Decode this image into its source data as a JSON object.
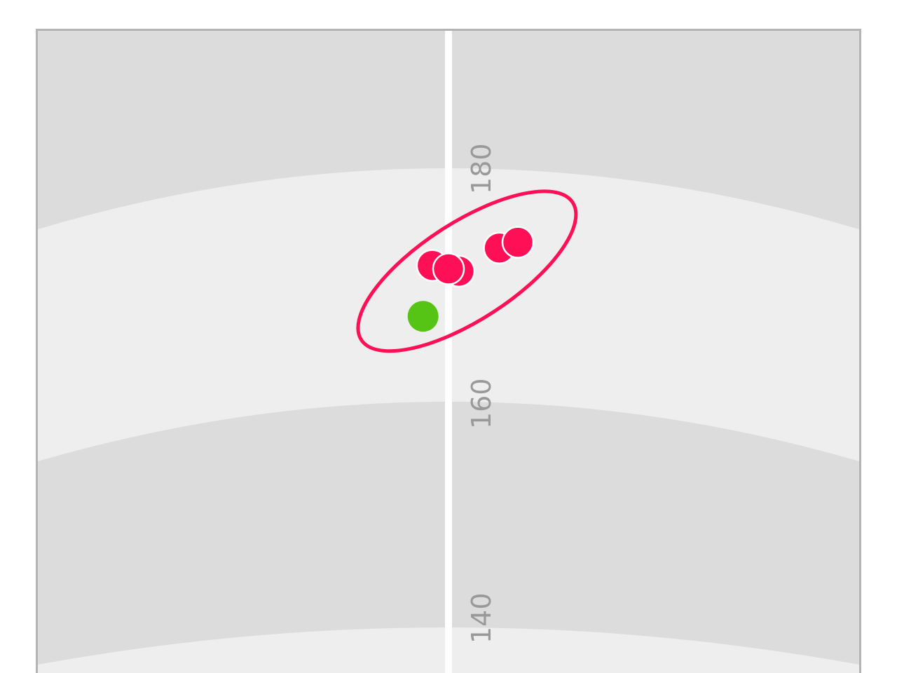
{
  "chart_data": {
    "type": "scatter",
    "title": "",
    "xlabel": "",
    "ylabel": "",
    "ylim": [
      135,
      191
    ],
    "xlim": [
      -35.5,
      35.5
    ],
    "grid": false,
    "distance_arcs": [
      180,
      160,
      140
    ],
    "tick_labels": [
      "180",
      "160",
      "140"
    ],
    "center_line": true,
    "series": [
      {
        "color": "#ff0f55",
        "points": [
          {
            "x": -1.4,
            "y": 171.6
          },
          {
            "x": 0.9,
            "y": 171.1
          },
          {
            "x": 0.0,
            "y": 171.3
          },
          {
            "x": 4.4,
            "y": 173.1
          },
          {
            "x": 6.0,
            "y": 173.6
          }
        ]
      },
      {
        "color": "#55c414",
        "points": [
          {
            "x": -2.2,
            "y": 167.2
          }
        ]
      }
    ],
    "dispersion_ellipse": {
      "color": "#ff0f55",
      "center": {
        "x": 1.6,
        "y": 171.1
      },
      "semi_axes": [
        10.9,
        4.2
      ],
      "angle_deg": -33
    },
    "colors": {
      "band_dark": "#dcdcdc",
      "band_light": "#eeeeee",
      "frame": "#b4b4b4",
      "center_line": "#ffffff",
      "tick_text": "#999999"
    }
  }
}
